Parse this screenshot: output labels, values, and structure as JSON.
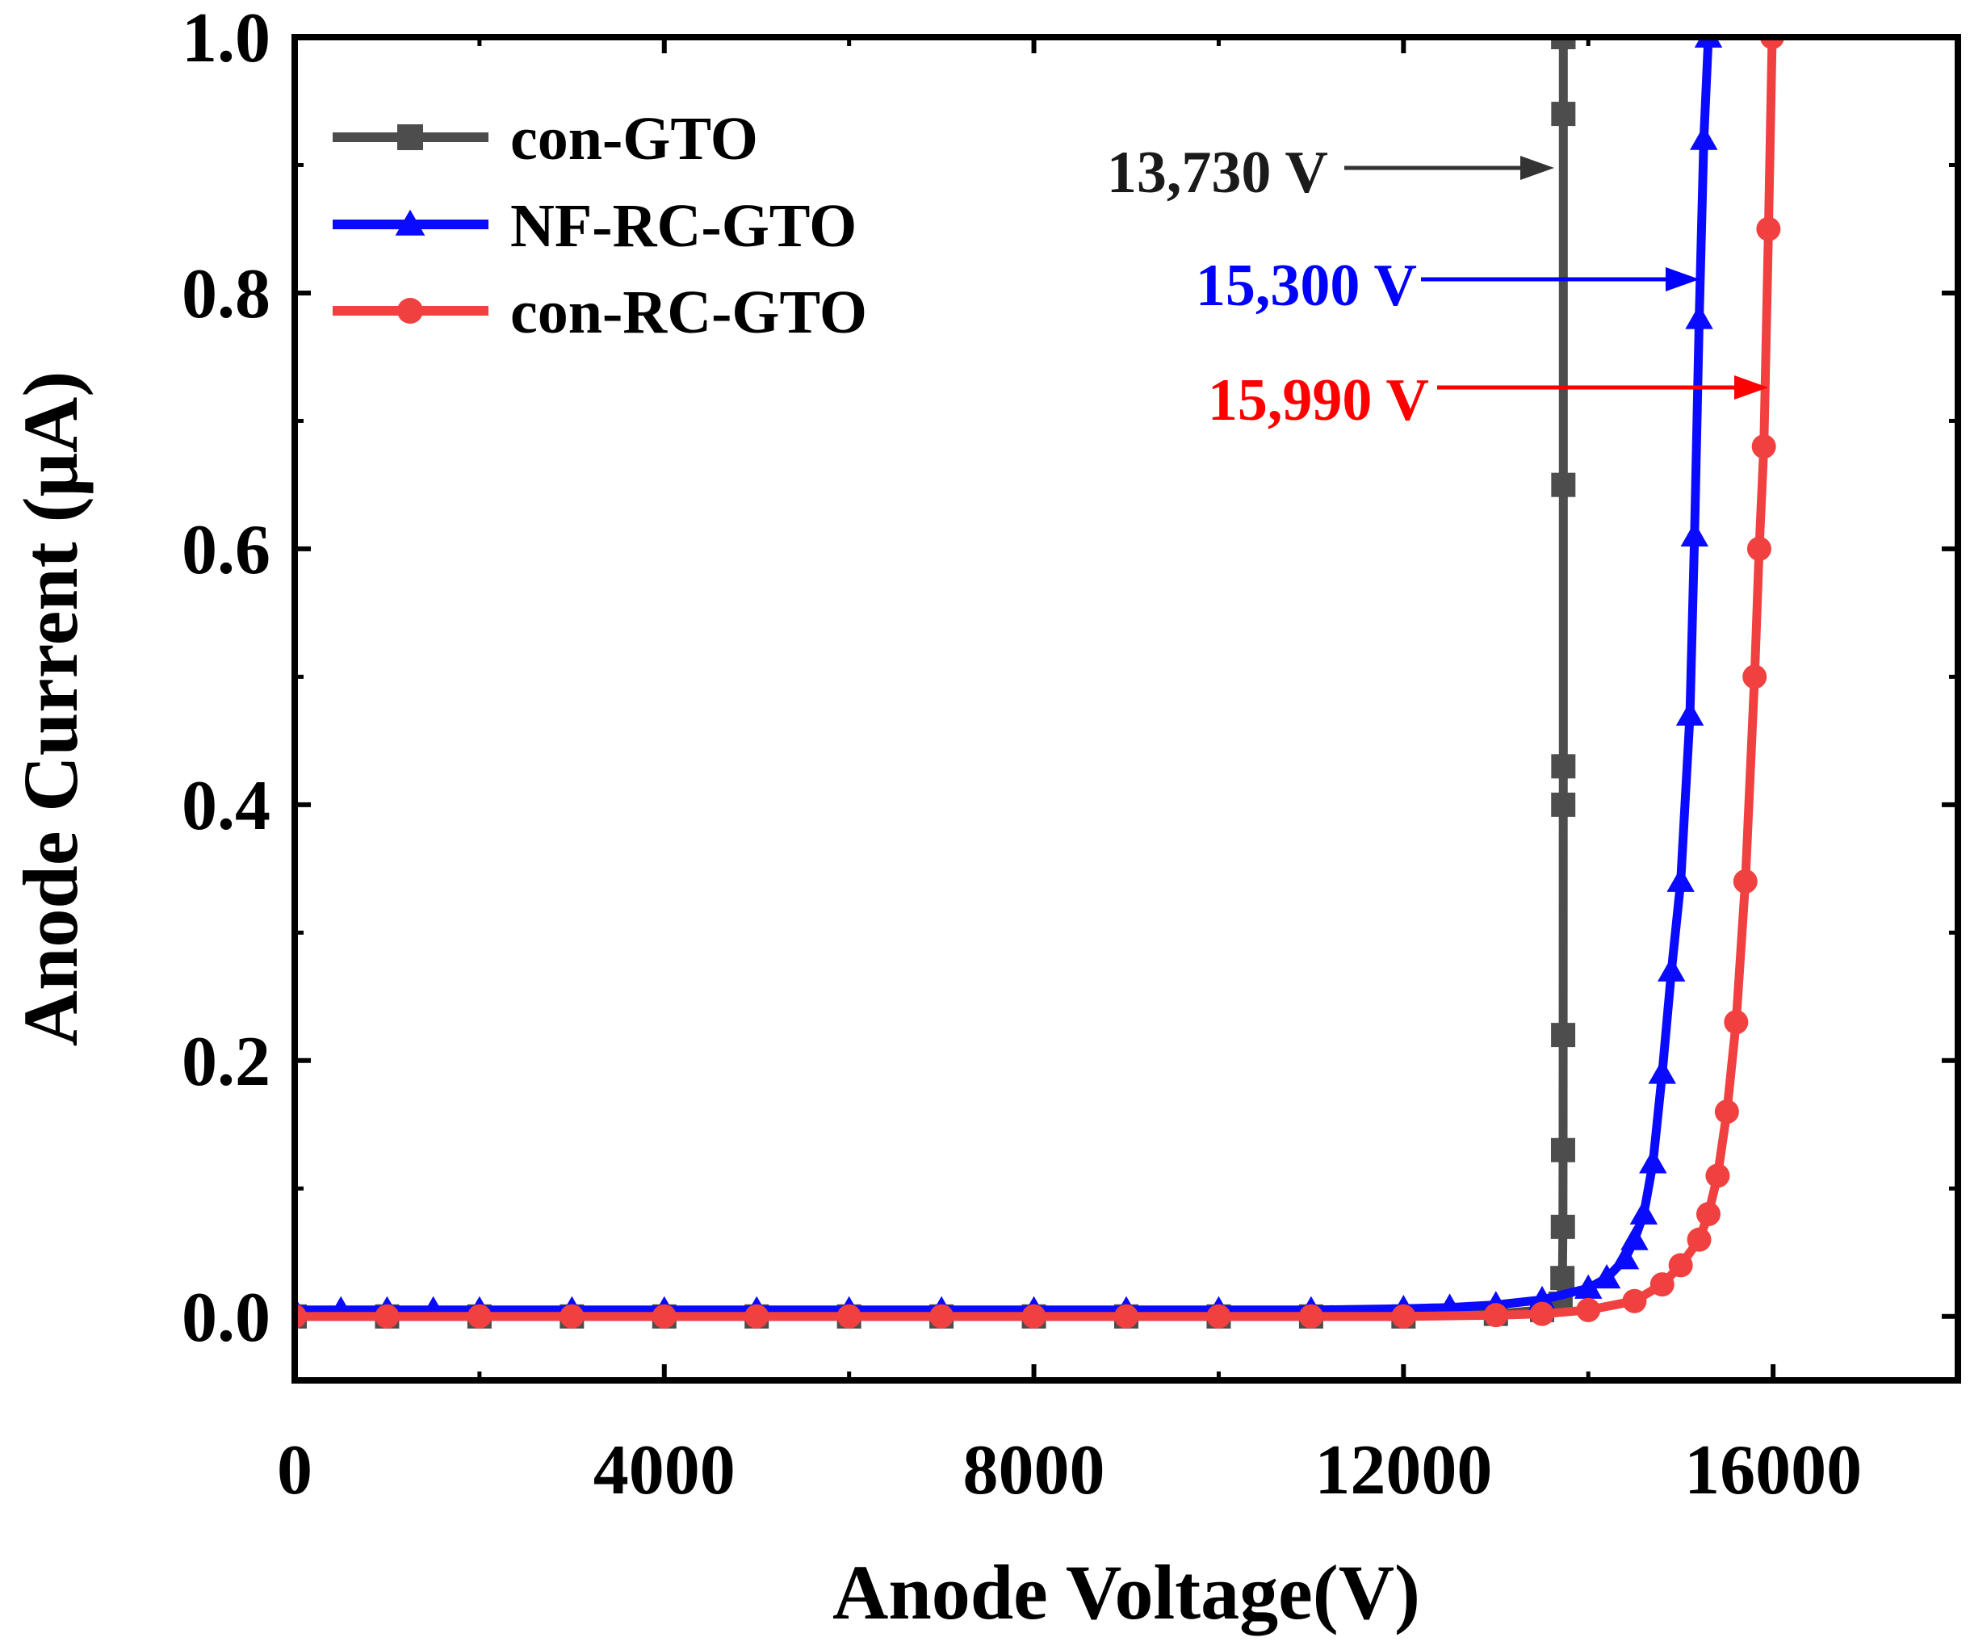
{
  "chart_data": {
    "type": "line",
    "title": "",
    "xlabel": "Anode Voltage(V)",
    "ylabel": "Anode Current (μA)",
    "xlim": [
      0,
      18000
    ],
    "ylim": [
      -0.05,
      1.0
    ],
    "xticks": [
      0,
      4000,
      8000,
      12000,
      16000
    ],
    "xtick_labels": [
      "0",
      "4000",
      "8000",
      "12000",
      "16000"
    ],
    "yticks": [
      0.0,
      0.2,
      0.4,
      0.6,
      0.8,
      1.0
    ],
    "ytick_labels": [
      "0.0",
      "0.2",
      "0.4",
      "0.6",
      "0.8",
      "1.0"
    ],
    "grid": false,
    "legend_position": "top-left",
    "series": [
      {
        "name": "con-GTO",
        "color": "#4d4d4d",
        "marker": "square",
        "x": [
          0,
          1000,
          2000,
          3000,
          4000,
          5000,
          6000,
          7000,
          8000,
          9000,
          10000,
          11000,
          12000,
          13000,
          13500,
          13700,
          13720,
          13725,
          13727,
          13728,
          13729,
          13730,
          13730,
          13730,
          13730,
          13730,
          13730
        ],
        "y": [
          0.0,
          0.0,
          0.0,
          0.0,
          0.0,
          0.0,
          0.0,
          0.0,
          0.0,
          0.0,
          0.0,
          0.0,
          0.0,
          0.002,
          0.005,
          0.01,
          0.03,
          0.07,
          0.13,
          0.22,
          0.4,
          0.43,
          0.65,
          0.94,
          1.0,
          1.0,
          1.0
        ]
      },
      {
        "name": "NF-RC-GTO",
        "color": "#0a0aff",
        "marker": "triangle",
        "x": [
          0,
          500,
          1000,
          1500,
          2000,
          3000,
          4000,
          5000,
          6000,
          7000,
          8000,
          9000,
          10000,
          11000,
          12000,
          12500,
          13000,
          13500,
          14000,
          14200,
          14400,
          14500,
          14600,
          14700,
          14800,
          14900,
          15000,
          15100,
          15150,
          15200,
          15250,
          15300
        ],
        "y": [
          0.005,
          0.005,
          0.005,
          0.005,
          0.005,
          0.005,
          0.005,
          0.005,
          0.005,
          0.005,
          0.005,
          0.005,
          0.005,
          0.005,
          0.006,
          0.007,
          0.009,
          0.013,
          0.022,
          0.03,
          0.045,
          0.06,
          0.08,
          0.12,
          0.19,
          0.27,
          0.34,
          0.47,
          0.61,
          0.78,
          0.92,
          1.0
        ]
      },
      {
        "name": "con-RC-GTO",
        "color": "#f04040",
        "marker": "circle",
        "x": [
          0,
          1000,
          2000,
          3000,
          4000,
          5000,
          6000,
          7000,
          8000,
          9000,
          10000,
          11000,
          12000,
          13000,
          13500,
          14000,
          14500,
          14800,
          15000,
          15200,
          15300,
          15400,
          15500,
          15600,
          15700,
          15800,
          15850,
          15900,
          15950,
          15990
        ],
        "y": [
          0.0,
          0.0,
          0.0,
          0.0,
          0.0,
          0.0,
          0.0,
          0.0,
          0.0,
          0.0,
          0.0,
          0.0,
          0.0,
          0.001,
          0.002,
          0.005,
          0.012,
          0.025,
          0.04,
          0.06,
          0.08,
          0.11,
          0.16,
          0.23,
          0.34,
          0.5,
          0.6,
          0.68,
          0.85,
          1.0
        ]
      }
    ],
    "annotations": [
      {
        "text": "13,730 V",
        "x": 13730,
        "y": 0.9,
        "color": "#1a1a1a",
        "arrow_color": "#333333"
      },
      {
        "text": "15,300 V",
        "x": 15300,
        "y": 0.81,
        "color": "#0000ff",
        "arrow_color": "#0000ff"
      },
      {
        "text": "15,990 V",
        "x": 15990,
        "y": 0.72,
        "color": "#ff0000",
        "arrow_color": "#ff0000"
      }
    ]
  }
}
